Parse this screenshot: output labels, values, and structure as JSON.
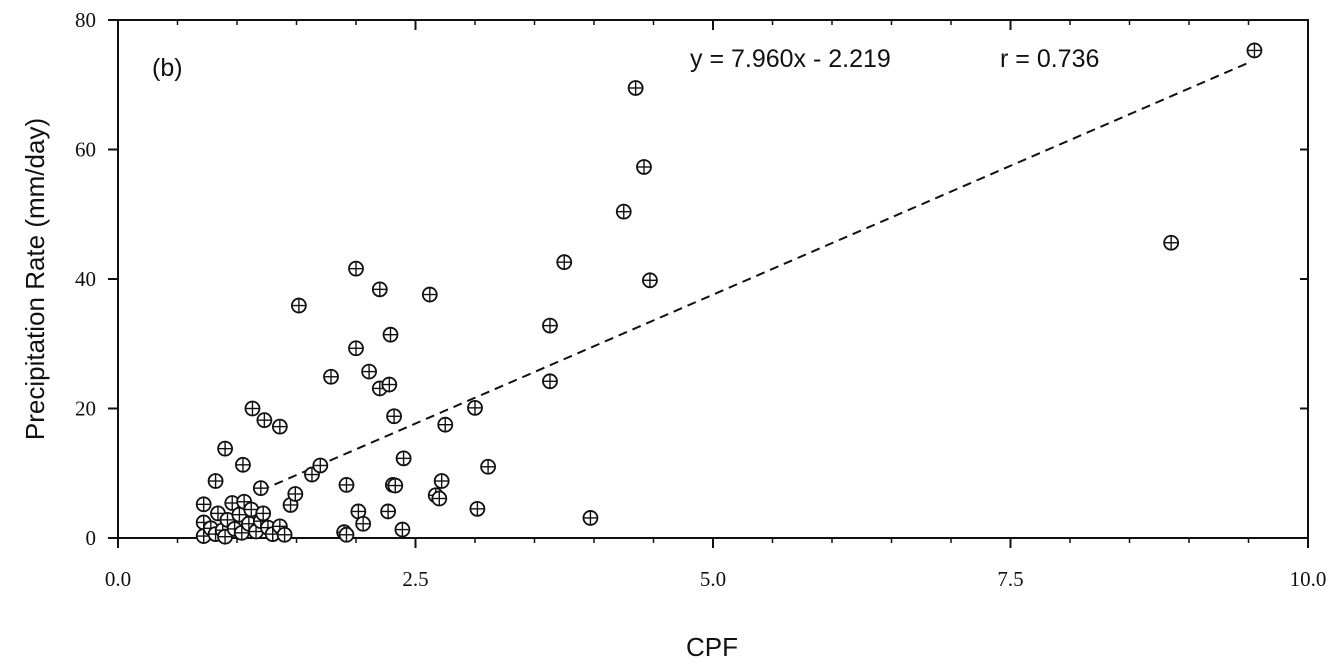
{
  "chart_data": {
    "type": "scatter",
    "panel_label": "(b)",
    "xlabel": "CPF",
    "ylabel": "Precipitation Rate  (mm/day)",
    "xlim": [
      0,
      10
    ],
    "ylim": [
      0,
      80
    ],
    "xticks": [
      "0.0",
      "2.5",
      "5.0",
      "7.5",
      "10.0"
    ],
    "yticks": [
      "0",
      "20",
      "40",
      "60",
      "80"
    ],
    "xtick_values": [
      0,
      2.5,
      5,
      7.5,
      10
    ],
    "ytick_values": [
      0,
      20,
      40,
      60,
      80
    ],
    "grid": false,
    "marker": "circle-plus",
    "regression": {
      "equation": "y = 7.960x - 2.219",
      "r_label": "r = 0.736",
      "slope": 7.96,
      "intercept": -2.219,
      "x_range": [
        1.2,
        9.5
      ],
      "style": "dashed"
    },
    "points": [
      [
        0.72,
        5.2
      ],
      [
        0.72,
        2.4
      ],
      [
        0.72,
        0.3
      ],
      [
        0.78,
        1.5
      ],
      [
        0.82,
        0.6
      ],
      [
        0.84,
        3.8
      ],
      [
        0.88,
        1.2
      ],
      [
        0.9,
        0.2
      ],
      [
        0.92,
        2.8
      ],
      [
        0.96,
        5.4
      ],
      [
        0.98,
        1.4
      ],
      [
        1.02,
        3.6
      ],
      [
        1.04,
        0.8
      ],
      [
        1.06,
        5.6
      ],
      [
        1.1,
        2.2
      ],
      [
        1.12,
        4.4
      ],
      [
        1.16,
        1.0
      ],
      [
        1.2,
        2.6
      ],
      [
        1.22,
        3.8
      ],
      [
        1.26,
        1.6
      ],
      [
        1.3,
        0.6
      ],
      [
        1.36,
        1.8
      ],
      [
        1.4,
        0.5
      ],
      [
        0.82,
        8.8
      ],
      [
        0.9,
        13.8
      ],
      [
        1.05,
        11.3
      ],
      [
        1.13,
        20.0
      ],
      [
        1.2,
        7.7
      ],
      [
        1.23,
        18.2
      ],
      [
        1.36,
        17.2
      ],
      [
        1.45,
        5.1
      ],
      [
        1.49,
        6.8
      ],
      [
        1.52,
        35.9
      ],
      [
        1.63,
        9.8
      ],
      [
        1.7,
        11.2
      ],
      [
        1.79,
        24.9
      ],
      [
        1.9,
        0.9
      ],
      [
        1.92,
        0.5
      ],
      [
        1.92,
        8.2
      ],
      [
        2.0,
        29.3
      ],
      [
        2.02,
        4.1
      ],
      [
        2.0,
        41.6
      ],
      [
        2.06,
        2.2
      ],
      [
        2.11,
        25.7
      ],
      [
        2.2,
        23.1
      ],
      [
        2.2,
        38.4
      ],
      [
        2.27,
        4.1
      ],
      [
        2.28,
        23.7
      ],
      [
        2.29,
        31.4
      ],
      [
        2.31,
        8.2
      ],
      [
        2.32,
        18.8
      ],
      [
        2.33,
        8.1
      ],
      [
        2.39,
        1.3
      ],
      [
        2.4,
        12.3
      ],
      [
        2.62,
        37.6
      ],
      [
        2.67,
        6.6
      ],
      [
        2.7,
        6.1
      ],
      [
        2.72,
        8.8
      ],
      [
        2.75,
        17.5
      ],
      [
        3.0,
        20.1
      ],
      [
        3.02,
        4.5
      ],
      [
        3.11,
        11.0
      ],
      [
        3.63,
        32.8
      ],
      [
        3.63,
        24.2
      ],
      [
        3.75,
        42.6
      ],
      [
        3.97,
        3.1
      ],
      [
        4.25,
        50.4
      ],
      [
        4.35,
        69.5
      ],
      [
        4.42,
        57.3
      ],
      [
        4.47,
        39.8
      ],
      [
        8.85,
        45.6
      ],
      [
        9.55,
        75.3
      ]
    ]
  }
}
